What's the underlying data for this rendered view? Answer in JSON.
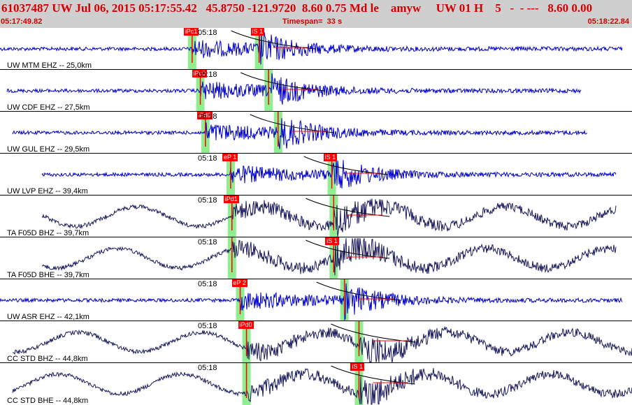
{
  "header": {
    "title": "61037487 UW Jul 06, 2015 05:17:55.42   45.8750 -121.9720  8.60 0.75 Md le    amyw     UW 01 H    5   -  - ---   8.60 0.00",
    "start_time": "05:17:49.82",
    "timespan": "Timespan=  33 s",
    "end_time": "05:18:22.84"
  },
  "tick_label": "05:18",
  "colors": {
    "header_bg": "#cfcfcf",
    "header_text": "#d40000",
    "pick": "#ff0000",
    "window": "#90ee90",
    "blue": "#0000cc",
    "navy": "#1a1a5e"
  },
  "channels": [
    {
      "label": "UW MTM EHZ -- 25,0km",
      "color": "#0000cc",
      "p_pick": "iPc1",
      "s_pick": "iS 1",
      "p_frac": 0.304,
      "s_frac": 0.41,
      "end_frac": 0.985
    },
    {
      "label": "UW CDF EHZ -- 27,5km",
      "color": "#0000cc",
      "p_pick": "iPc0",
      "s_pick": "",
      "p_frac": 0.317,
      "s_frac": 0.425,
      "end_frac": 0.92
    },
    {
      "label": "UW GUL EHZ -- 29,5km",
      "color": "#0000cc",
      "p_pick": "iPd0",
      "s_pick": "",
      "p_frac": 0.325,
      "s_frac": 0.44,
      "end_frac": 0.93
    },
    {
      "label": "UW LVP EHZ -- 39,4km",
      "color": "#0000cc",
      "p_pick": "eP 1",
      "s_pick": "iS 1",
      "p_frac": 0.365,
      "s_frac": 0.525,
      "end_frac": 0.975
    },
    {
      "label": "TA F05D BHZ -- 39,7km",
      "color": "#1a1a5e",
      "p_pick": "iPd1",
      "s_pick": "",
      "p_frac": 0.367,
      "s_frac": 0.528,
      "end_frac": 0.975
    },
    {
      "label": "TA F05D BHE -- 39,7km",
      "color": "#1a1a5e",
      "p_pick": "",
      "s_pick": "iS 1",
      "p_frac": 0.367,
      "s_frac": 0.528,
      "end_frac": 0.975
    },
    {
      "label": "UW ASR EHZ -- 42,1km",
      "color": "#0000cc",
      "p_pick": "eP 2",
      "s_pick": "",
      "p_frac": 0.38,
      "s_frac": 0.545,
      "end_frac": 0.985
    },
    {
      "label": "CC STD BHZ -- 44,8km",
      "color": "#1a1a5e",
      "p_pick": "iPd0",
      "s_pick": "",
      "p_frac": 0.39,
      "s_frac": 0.568,
      "end_frac": 1.0
    },
    {
      "label": "CC STD BHE -- 44,8km",
      "color": "#1a1a5e",
      "p_pick": "",
      "s_pick": "iS 1",
      "p_frac": 0.39,
      "s_frac": 0.568,
      "end_frac": 1.0
    }
  ]
}
